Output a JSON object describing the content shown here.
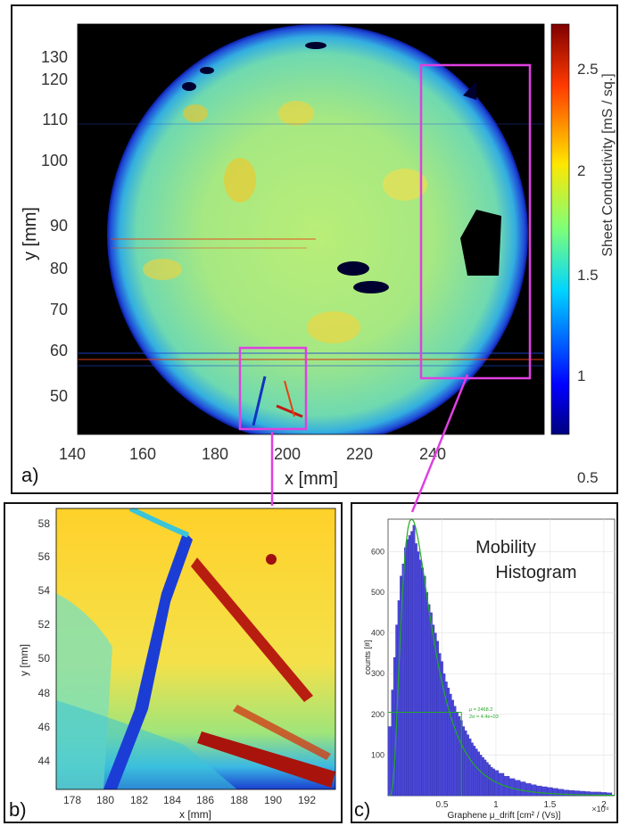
{
  "panel_a": {
    "label": "a)",
    "xlabel": "x [mm]",
    "ylabel": "y [mm]",
    "colorbar_label": "Sheet Conductivity [mS / sq.]",
    "xticks": [
      "140",
      "160",
      "180",
      "200",
      "220",
      "240"
    ],
    "yticks": [
      "130",
      "120",
      "110",
      "100",
      "90",
      "80",
      "70",
      "60",
      "50"
    ],
    "colorbar_ticks": [
      "2.5",
      "2",
      "1.5",
      "1",
      "0.5"
    ]
  },
  "panel_b": {
    "label": "b)",
    "xlabel": "x [mm]",
    "ylabel": "y [mm]",
    "xticks": [
      "178",
      "180",
      "182",
      "184",
      "186",
      "188",
      "190",
      "192"
    ],
    "yticks": [
      "58",
      "56",
      "54",
      "52",
      "50",
      "48",
      "46",
      "44"
    ]
  },
  "panel_c": {
    "label": "c)",
    "title_line1": "Mobility",
    "title_line2": "Histogram",
    "mu_label": "μ = 2468.2",
    "sigma_label": "2σ = 4.4e+03",
    "xlabel": "Graphene μ_drift [cm² / (Vs)]",
    "ylabel": "counts [#]",
    "x_multiplier": "×10⁴",
    "xticks": [
      "0.5",
      "1",
      "1.5",
      "2"
    ],
    "yticks": [
      "600",
      "500",
      "400",
      "300",
      "200",
      "100"
    ]
  },
  "colors": {
    "highlight": "#e040e0",
    "histogram_bar": "#4a47d8",
    "fit_curve": "#22aa22"
  },
  "chart_data": [
    {
      "type": "heatmap",
      "panel": "a",
      "quantity": "Sheet Conductivity [mS / sq.]",
      "xlabel": "x [mm]",
      "ylabel": "y [mm]",
      "xlim": [
        140,
        250
      ],
      "ylim": [
        42,
        137
      ],
      "colorbar_range": [
        0.1,
        2.75
      ],
      "colormap": "jet",
      "highlight_regions": [
        {
          "x": [
            178,
            194
          ],
          "y": [
            43,
            61
          ]
        },
        {
          "x": [
            223,
            240
          ],
          "y": [
            53,
            124
          ]
        }
      ]
    },
    {
      "type": "heatmap",
      "panel": "b",
      "xlabel": "x [mm]",
      "ylabel": "y [mm]",
      "xlim": [
        177,
        194
      ],
      "ylim": [
        43,
        59
      ],
      "colormap": "jet"
    },
    {
      "type": "bar",
      "panel": "c",
      "xlabel": "Graphene μ_drift [cm² / (Vs)]",
      "ylabel": "counts [#]",
      "x_scale": 10000,
      "xlim": [
        0,
        2.1
      ],
      "ylim": [
        0,
        680
      ],
      "fit": {
        "mu": 2468.2,
        "two_sigma": 4400
      },
      "x": [
        0.02,
        0.04,
        0.06,
        0.08,
        0.1,
        0.12,
        0.14,
        0.16,
        0.18,
        0.2,
        0.22,
        0.24,
        0.26,
        0.28,
        0.3,
        0.32,
        0.34,
        0.36,
        0.38,
        0.4,
        0.42,
        0.44,
        0.46,
        0.48,
        0.5,
        0.52,
        0.54,
        0.56,
        0.58,
        0.6,
        0.62,
        0.64,
        0.66,
        0.68,
        0.7,
        0.72,
        0.74,
        0.76,
        0.78,
        0.8,
        0.82,
        0.84,
        0.86,
        0.88,
        0.9,
        0.92,
        0.94,
        0.96,
        0.98,
        1.0,
        1.05,
        1.1,
        1.15,
        1.2,
        1.25,
        1.3,
        1.35,
        1.4,
        1.45,
        1.5,
        1.55,
        1.6,
        1.65,
        1.7,
        1.75,
        1.8,
        1.85,
        1.9,
        1.95,
        2.0,
        2.05
      ],
      "values": [
        170,
        260,
        340,
        420,
        480,
        540,
        570,
        610,
        630,
        640,
        650,
        665,
        620,
        600,
        580,
        560,
        540,
        500,
        470,
        450,
        420,
        400,
        380,
        350,
        330,
        300,
        280,
        265,
        250,
        235,
        220,
        205,
        195,
        185,
        170,
        160,
        150,
        140,
        130,
        122,
        115,
        108,
        100,
        94,
        88,
        82,
        76,
        70,
        66,
        62,
        55,
        48,
        42,
        38,
        34,
        30,
        27,
        24,
        22,
        20,
        18,
        16,
        14,
        13,
        12,
        11,
        10,
        9,
        9,
        8,
        7
      ]
    }
  ]
}
